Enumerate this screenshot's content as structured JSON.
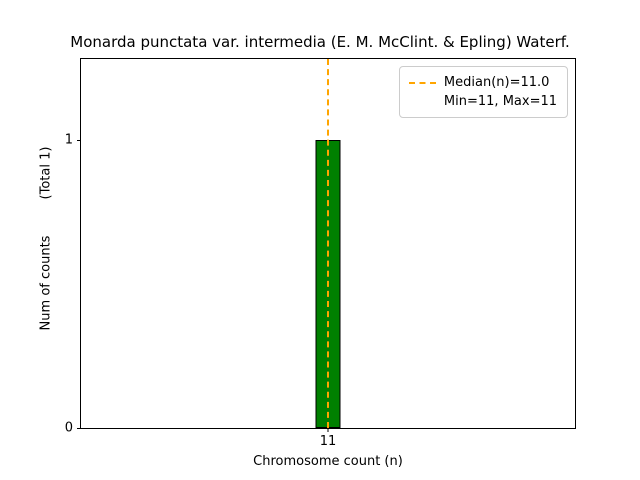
{
  "chart_data": {
    "type": "bar",
    "title": "Monarda punctata var. intermedia (E. M. McClint. & Epling) Waterf.",
    "xlabel": "Chromosome count (n)",
    "ylabel": "Num of counts",
    "ylabel_secondary": "(Total 1)",
    "categories": [
      "11"
    ],
    "values": [
      1
    ],
    "yticks": [
      0,
      1
    ],
    "ylim": [
      0,
      1.28
    ],
    "median": 11.0,
    "min": 11,
    "max": 11,
    "grid": false,
    "legend": {
      "position": "upper right",
      "entries": [
        "Median(n)=11.0",
        "Min=11, Max=11"
      ]
    },
    "colors": {
      "bar": "#008000",
      "bar_edge": "#000000",
      "median_line": "#ffa500",
      "spine": "#000000",
      "legend_border": "#cccccc"
    }
  }
}
